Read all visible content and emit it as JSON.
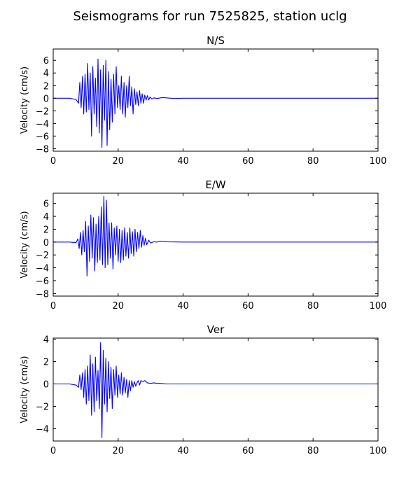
{
  "figure": {
    "title": "Seismograms for run 7525825, station uclg"
  },
  "chart_data": [
    {
      "type": "line",
      "title": "N/S",
      "xlabel": "",
      "ylabel": "Velocity (cm/s)",
      "xlim": [
        0,
        100
      ],
      "ylim": [
        -8.4,
        7.8
      ],
      "xticks": [
        0,
        20,
        40,
        60,
        80,
        100
      ],
      "yticks": [
        -8,
        -6,
        -4,
        -2,
        0,
        2,
        4,
        6
      ],
      "grid": false,
      "color": "#0000ff",
      "series": [
        {
          "x": [
            0,
            5,
            7.0,
            7.8,
            8.2,
            8.6,
            9.0,
            9.4,
            9.8,
            10.2,
            10.6,
            11.0,
            11.4,
            11.8,
            12.2,
            12.6,
            13.0,
            13.4,
            13.8,
            14.2,
            14.6,
            15.0,
            15.4,
            15.8,
            16.2,
            16.6,
            17.0,
            17.4,
            17.8,
            18.2,
            18.6,
            19.0,
            19.4,
            19.8,
            20.2,
            20.6,
            21.0,
            21.4,
            21.8,
            22.2,
            22.6,
            23.0,
            23.4,
            23.8,
            24.2,
            24.6,
            25.0,
            25.4,
            25.8,
            26.2,
            26.6,
            27.0,
            27.4,
            27.8,
            28.2,
            28.6,
            29.0,
            29.4,
            29.8,
            30.4,
            31.0,
            32.0,
            33.5,
            35.0,
            37.0,
            40.0,
            50.0,
            60.0,
            70.0,
            80.0,
            90.0,
            100.0
          ],
          "y": [
            0,
            0,
            -0.2,
            -0.8,
            2.5,
            -1.5,
            3.5,
            -2.5,
            3.8,
            -2.2,
            5.5,
            -1.8,
            4.0,
            -6.0,
            5.0,
            -2.5,
            3.2,
            -4.5,
            6.2,
            -5.5,
            4.5,
            -7.8,
            5.2,
            -3.5,
            6.0,
            -7.5,
            4.2,
            -5.0,
            3.0,
            -3.8,
            3.8,
            -2.5,
            5.0,
            -1.5,
            2.0,
            -1.8,
            3.5,
            -2.5,
            2.5,
            -3.0,
            2.0,
            -1.5,
            3.5,
            -1.2,
            1.8,
            -2.5,
            1.5,
            -1.0,
            1.0,
            -1.2,
            1.2,
            -0.8,
            0.7,
            -0.8,
            0.5,
            -0.3,
            0.4,
            -0.3,
            0.2,
            -0.15,
            0.05,
            -0.05,
            0.1,
            0.05,
            -0.05,
            0.0,
            0,
            0,
            0,
            0,
            0,
            0
          ]
        }
      ]
    },
    {
      "type": "line",
      "title": "E/W",
      "xlabel": "",
      "ylabel": "Velocity (cm/s)",
      "xlim": [
        0,
        100
      ],
      "ylim": [
        -8.4,
        7.6
      ],
      "xticks": [
        0,
        20,
        40,
        60,
        80,
        100
      ],
      "yticks": [
        -8,
        -6,
        -4,
        -2,
        0,
        2,
        4,
        6
      ],
      "grid": false,
      "color": "#0000ff",
      "series": [
        {
          "x": [
            0,
            5,
            7.0,
            7.6,
            8.0,
            8.4,
            8.8,
            9.2,
            9.6,
            10.0,
            10.4,
            10.8,
            11.2,
            11.6,
            12.0,
            12.4,
            12.8,
            13.2,
            13.6,
            14.0,
            14.4,
            14.8,
            15.2,
            15.6,
            16.0,
            16.4,
            16.8,
            17.2,
            17.6,
            18.0,
            18.4,
            18.8,
            19.2,
            19.6,
            20.0,
            20.4,
            20.8,
            21.2,
            21.6,
            22.0,
            22.4,
            22.8,
            23.2,
            23.6,
            24.0,
            24.4,
            24.8,
            25.2,
            25.6,
            26.0,
            26.4,
            26.8,
            27.2,
            27.6,
            28.0,
            28.4,
            28.8,
            29.4,
            30.0,
            31.0,
            32.0,
            33.0,
            35.0,
            40.0,
            50.0,
            60.0,
            70.0,
            80.0,
            90.0,
            100.0
          ],
          "y": [
            0,
            0,
            -0.1,
            0.5,
            -1.0,
            1.5,
            -2.0,
            1.8,
            -1.5,
            3.2,
            -5.3,
            2.5,
            -3.0,
            4.2,
            -2.5,
            3.8,
            -4.5,
            2.8,
            -3.2,
            4.0,
            -2.8,
            5.5,
            -3.5,
            7.1,
            -4.0,
            6.5,
            -3.5,
            3.0,
            -2.5,
            3.0,
            -4.2,
            2.2,
            -2.0,
            2.5,
            -3.0,
            2.0,
            -3.2,
            1.8,
            -2.8,
            2.2,
            -2.2,
            1.5,
            -2.5,
            2.2,
            -1.8,
            1.6,
            -2.2,
            2.0,
            -1.5,
            1.5,
            -1.0,
            1.8,
            -0.8,
            1.0,
            -0.5,
            0.6,
            -0.4,
            0.3,
            -0.15,
            0.05,
            0.0,
            0.15,
            0.05,
            0.0,
            0,
            0,
            0,
            0,
            0,
            0
          ]
        }
      ]
    },
    {
      "type": "line",
      "title": "Ver",
      "xlabel": "",
      "ylabel": "Velocity (cm/s)",
      "xlim": [
        0,
        100
      ],
      "ylim": [
        -5.1,
        4.1
      ],
      "xticks": [
        0,
        20,
        40,
        60,
        80,
        100
      ],
      "yticks": [
        -4,
        -2,
        0,
        2,
        4
      ],
      "grid": false,
      "color": "#0000ff",
      "series": [
        {
          "x": [
            0,
            5,
            7.0,
            7.8,
            8.2,
            8.6,
            9.0,
            9.4,
            9.8,
            10.2,
            10.6,
            11.0,
            11.4,
            11.8,
            12.2,
            12.6,
            13.0,
            13.4,
            13.8,
            14.2,
            14.6,
            15.0,
            15.4,
            15.8,
            16.2,
            16.6,
            17.0,
            17.4,
            17.8,
            18.2,
            18.6,
            19.0,
            19.4,
            19.8,
            20.2,
            20.6,
            21.0,
            21.4,
            21.8,
            22.2,
            22.6,
            23.0,
            23.4,
            23.8,
            24.2,
            24.6,
            25.0,
            25.4,
            25.8,
            26.2,
            26.6,
            27.0,
            27.6,
            28.2,
            29.0,
            30.0,
            31.0,
            32.0,
            33.0,
            35.0,
            40.0,
            50.0,
            60.0,
            70.0,
            80.0,
            90.0,
            100.0
          ],
          "y": [
            0,
            0,
            -0.1,
            -0.3,
            0.8,
            -0.5,
            1.0,
            -1.2,
            1.3,
            -1.8,
            1.6,
            -1.5,
            2.6,
            -2.8,
            1.8,
            -2.5,
            2.4,
            -1.5,
            1.2,
            -2.2,
            3.7,
            -4.8,
            3.0,
            -1.8,
            2.3,
            -2.5,
            2.0,
            -1.3,
            1.5,
            -2.2,
            1.3,
            -1.0,
            1.6,
            -1.2,
            0.8,
            -0.9,
            1.0,
            -1.0,
            0.6,
            -0.8,
            0.4,
            -1.2,
            0.3,
            -0.6,
            0.3,
            -0.3,
            0.2,
            -0.2,
            0.1,
            0.3,
            -0.1,
            0.3,
            0.2,
            0.3,
            0.1,
            0.05,
            0.1,
            0.05,
            0.05,
            0.0,
            0,
            0,
            0,
            0,
            0,
            0,
            0
          ]
        }
      ]
    }
  ]
}
